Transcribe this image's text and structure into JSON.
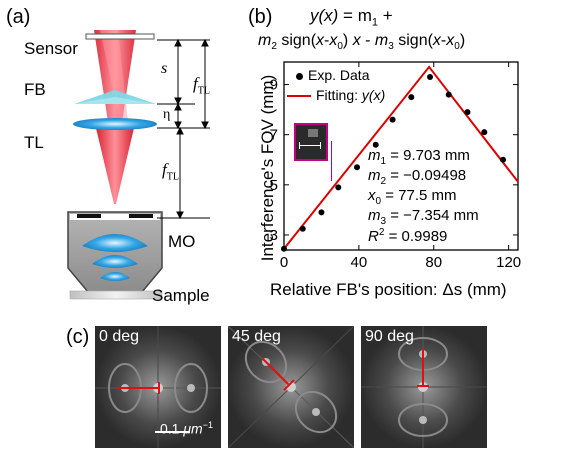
{
  "panel_a": {
    "letter": "(a)",
    "labels": {
      "sensor": "Sensor",
      "fb": "FB",
      "tl": "TL",
      "mo": "MO",
      "sample": "Sample"
    },
    "dims": {
      "s": "s",
      "eta": "η",
      "f": "f",
      "tl_sub": "TL"
    }
  },
  "panel_b": {
    "letter": "(b)",
    "equation": {
      "line1": {
        "lhs": "y(x)",
        "eq": " = m",
        "sub1": "1",
        "plus": " +"
      },
      "line2": {
        "m": "m",
        "m_sub": "2",
        "sign1": " sign(",
        "x": "x",
        "minus": "-",
        "x0": "x",
        "x0_sub": "0",
        "close": ") ",
        "xvar": "x",
        "dash": " - ",
        "m3": "m",
        "m3_sub": "3",
        "sign2": " sign(",
        "xb": "x",
        "minusb": "-",
        "x0b": "x",
        "x0b_sub": "0",
        "closeb": ")"
      }
    },
    "legend": {
      "exp": "Exp. Data",
      "fit_prefix": "Fitting: ",
      "fit_fn": "y(x)"
    },
    "params": [
      {
        "sym": "m",
        "sub": "1",
        "rest": "  = 9.703 mm"
      },
      {
        "sym": "m",
        "sub": "2",
        "rest": " = −0.09498"
      },
      {
        "sym": "x",
        "sub": "0",
        "rest": " = 77.5 mm"
      },
      {
        "sym": "m",
        "sub": "3",
        "rest": " = −7.354 mm"
      },
      {
        "sym": "R",
        "sup": "2",
        "rest": " = 0.9989"
      }
    ]
  },
  "panel_c": {
    "letter": "(c)",
    "images": [
      {
        "label": "0 deg"
      },
      {
        "label": "45 deg"
      },
      {
        "label": "90 deg"
      }
    ],
    "scalebar": {
      "value": "0.1 ",
      "unit": "μm",
      "exp": "−1"
    }
  },
  "colors": {
    "beam": "#e8202f",
    "lens": "#2aa0e0",
    "fb": "#7fd8e6",
    "fit": "#e00000"
  },
  "chart_data": {
    "type": "scatter",
    "xlabel": "Relative FB's position: Δs (mm)",
    "ylabel": "Interference's FOV (mm)",
    "xlim": [
      0,
      125
    ],
    "ylim": [
      2.4,
      9.9
    ],
    "xticks": [
      "0",
      "40",
      "80",
      "120"
    ],
    "yticks": [
      "3",
      "5",
      "7",
      "9"
    ],
    "x_tick_values": [
      0,
      40,
      80,
      120
    ],
    "y_tick_values": [
      3,
      5,
      7,
      9
    ],
    "series": [
      {
        "name": "Exp. Data",
        "x": [
          0,
          10,
          20,
          29,
          39,
          49,
          58,
          68,
          78,
          88,
          98,
          107,
          117
        ],
        "y": [
          2.45,
          3.25,
          3.9,
          4.9,
          5.7,
          6.6,
          7.6,
          8.5,
          9.3,
          8.6,
          7.9,
          7.1,
          6.0
        ]
      }
    ],
    "fit": {
      "name": "Fitting: y(x)",
      "m1": 9.703,
      "m2": -0.09498,
      "x0": 77.5,
      "m3": -7.354
    }
  }
}
